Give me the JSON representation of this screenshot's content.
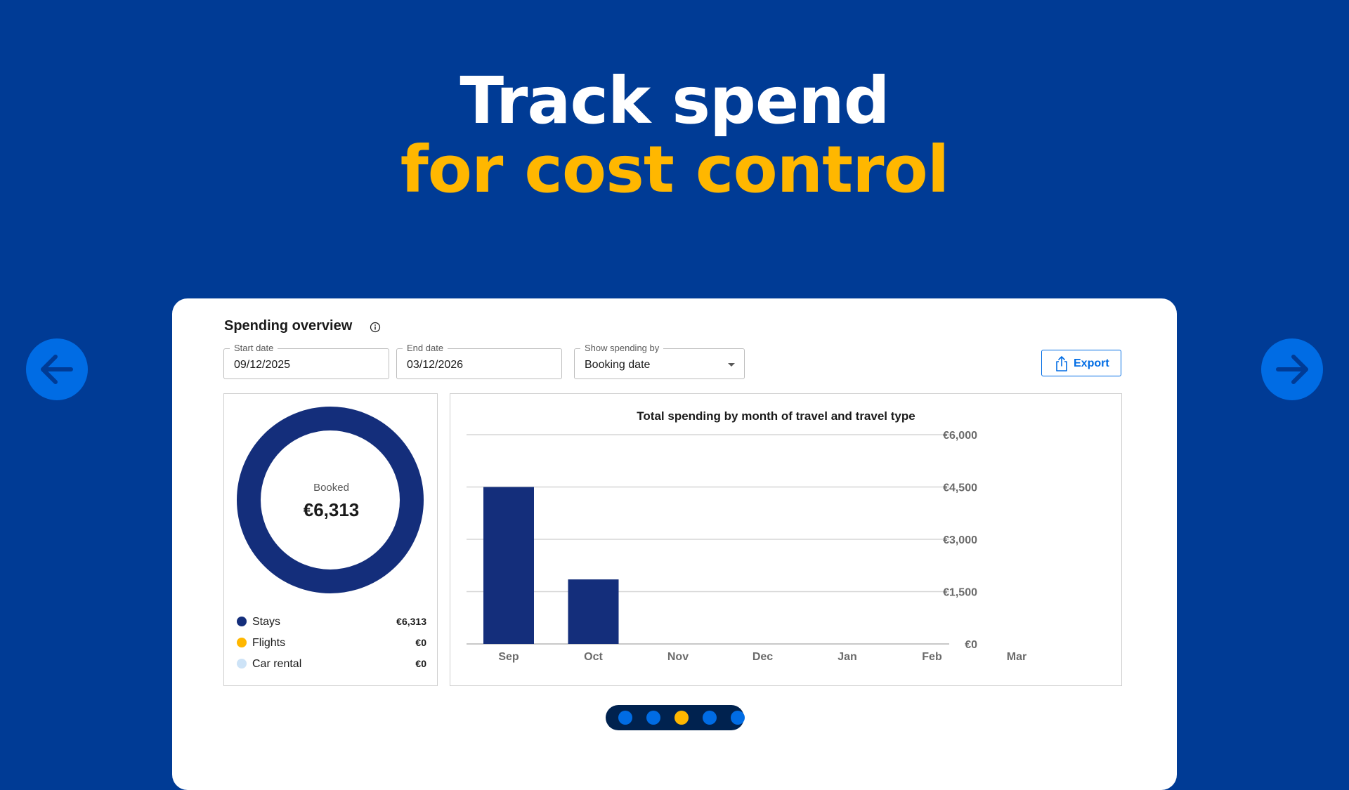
{
  "headline": {
    "line1": "Track spend",
    "line2": "for cost control"
  },
  "navigation": {
    "prev_icon": "arrow-left-icon",
    "next_icon": "arrow-right-icon"
  },
  "card": {
    "title": "Spending overview",
    "info_icon": "info-icon",
    "filters": {
      "start_date": {
        "label": "Start date",
        "value": "09/12/2025"
      },
      "end_date": {
        "label": "End date",
        "value": "03/12/2026"
      },
      "show_by": {
        "label": "Show spending by",
        "value": "Booking date"
      }
    },
    "export_label": "Export",
    "donut": {
      "center_label": "Booked",
      "center_value": "€6,313",
      "legend": [
        {
          "name": "Stays",
          "value": "€6,313",
          "color": "#142e7b"
        },
        {
          "name": "Flights",
          "value": "€0",
          "color": "#ffb700"
        },
        {
          "name": "Car rental",
          "value": "€0",
          "color": "#cde3f7"
        }
      ]
    }
  },
  "chart_data": {
    "type": "bar",
    "title": "Total spending by month of travel and travel type",
    "categories": [
      "Sep",
      "Oct",
      "Nov",
      "Dec",
      "Jan",
      "Feb",
      "Mar"
    ],
    "values": [
      4500,
      1850,
      0,
      0,
      0,
      0,
      0
    ],
    "y_ticks": [
      "€0",
      "€1,500",
      "€3,000",
      "€4,500",
      "€6,000"
    ],
    "y_tick_values": [
      0,
      1500,
      3000,
      4500,
      6000
    ],
    "ylim": [
      0,
      6000
    ],
    "y_axis_side": "right",
    "grid": true,
    "bar_color": "#142e7b"
  },
  "pager": {
    "count": 5,
    "active_index": 2,
    "active_color": "#ffb700",
    "inactive_color": "#006ce4"
  }
}
